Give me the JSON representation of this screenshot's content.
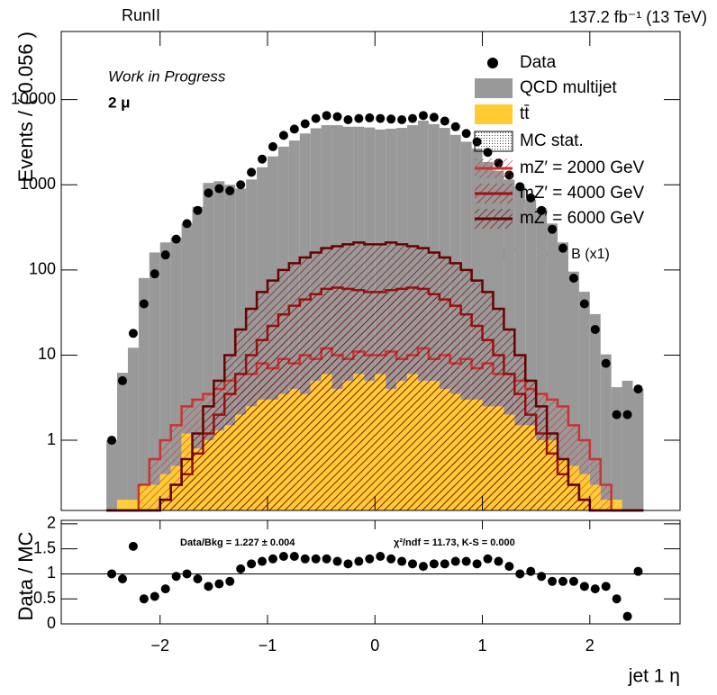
{
  "chart_data": [
    {
      "type": "histogram",
      "top_left": "RunII",
      "top_right": "137.2 fb⁻¹  (13 TeV)",
      "annotations": [
        "Work in Progress",
        "2  μ"
      ],
      "ylabel": "Events / ( 0.056 )",
      "log_y": true,
      "xlim": [
        -2.92,
        2.84
      ],
      "ylim": [
        0.15,
        63000
      ],
      "yticks": [
        1,
        10,
        100,
        1000,
        10000
      ],
      "bins": [
        -2.5,
        -2.4,
        -2.3,
        -2.2,
        -2.1,
        -2.0,
        -1.9,
        -1.8,
        -1.7,
        -1.6,
        -1.5,
        -1.4,
        -1.3,
        -1.2,
        -1.1,
        -1.0,
        -0.9,
        -0.8,
        -0.7,
        -0.6,
        -0.5,
        -0.4,
        -0.3,
        -0.2,
        -0.1,
        0,
        0.1,
        0.2,
        0.3,
        0.4,
        0.5,
        0.6,
        0.7,
        0.8,
        0.9,
        1.0,
        1.1,
        1.2,
        1.3,
        1.4,
        1.5,
        1.6,
        1.7,
        1.8,
        1.9,
        2.0,
        2.1,
        2.2,
        2.3,
        2.4,
        2.5
      ],
      "series": [
        {
          "name": "Data",
          "style": "points",
          "color": "#000000",
          "values": [
            1,
            5,
            18,
            40,
            90,
            150,
            230,
            350,
            500,
            800,
            900,
            850,
            1000,
            1400,
            2000,
            2800,
            3800,
            4500,
            5200,
            6000,
            6500,
            6300,
            5800,
            6000,
            6100,
            6000,
            5900,
            5800,
            6000,
            6500,
            6200,
            5600,
            4800,
            4000,
            3200,
            2400,
            1800,
            1300,
            950,
            700,
            500,
            300,
            180,
            80,
            40,
            20,
            8,
            2,
            2,
            4
          ]
        },
        {
          "name": "QCD multijet",
          "style": "stack",
          "color": "#999999",
          "values": [
            1,
            6,
            12,
            80,
            160,
            210,
            240,
            350,
            550,
            1050,
            1100,
            1000,
            900,
            1150,
            1600,
            2150,
            2800,
            3300,
            4000,
            4600,
            5000,
            5000,
            4800,
            4800,
            4700,
            4450,
            4550,
            4650,
            5000,
            5650,
            5150,
            4650,
            3850,
            3200,
            2650,
            1850,
            1450,
            1150,
            950,
            670,
            530,
            350,
            210,
            95,
            55,
            30,
            10,
            4,
            5,
            4
          ]
        },
        {
          "name": "tt̄",
          "style": "stack",
          "color": "#ffcc33",
          "values": [
            0,
            0.2,
            0.2,
            0.3,
            0.3,
            0.4,
            0.5,
            1.2,
            0.8,
            1.0,
            1.3,
            1.5,
            2,
            2.5,
            3,
            3,
            3.5,
            4,
            3.5,
            5,
            6,
            4,
            5,
            6,
            5,
            6,
            4,
            5,
            6,
            5,
            5,
            4,
            3.5,
            3,
            3,
            2.5,
            2.5,
            2,
            1.5,
            1.5,
            1,
            1,
            0.6,
            0.5,
            0.4,
            0.3,
            0.2,
            0.2,
            0,
            0
          ]
        },
        {
          "name": "MC stat.",
          "style": "band",
          "color": "#555555"
        },
        {
          "name": "mZ′ = 2000 GeV",
          "style": "signal",
          "color": "#cc3333",
          "values": [
            0,
            0,
            0,
            0.3,
            0.6,
            1,
            1.5,
            2.5,
            3,
            3.5,
            4,
            5,
            6,
            6,
            8,
            7,
            9,
            8,
            10,
            9,
            12,
            10,
            9,
            11,
            10,
            10,
            11,
            9,
            10,
            12,
            9,
            10,
            8,
            9,
            7,
            8,
            6,
            6,
            5,
            4,
            3.5,
            3,
            2.5,
            1.5,
            1,
            0.6,
            0.3,
            0,
            0,
            0
          ]
        },
        {
          "name": "mZ′ = 4000 GeV",
          "style": "signal",
          "color": "#a01010",
          "values": [
            0,
            0,
            0,
            0,
            0,
            0.2,
            0.3,
            0.4,
            0.7,
            1.2,
            2,
            3.5,
            6,
            10,
            15,
            22,
            30,
            38,
            45,
            52,
            60,
            62,
            60,
            58,
            55,
            55,
            58,
            60,
            62,
            60,
            52,
            45,
            38,
            30,
            22,
            15,
            10,
            6,
            3.5,
            2,
            1.2,
            0.7,
            0.4,
            0.3,
            0.2,
            0,
            0,
            0,
            0,
            0
          ]
        },
        {
          "name": "mZ′ = 6000 GeV",
          "style": "signal",
          "color": "#6b0000",
          "values": [
            0,
            0,
            0,
            0,
            0,
            0.2,
            0.3,
            0.6,
            1.2,
            2.5,
            5,
            10,
            20,
            35,
            55,
            75,
            100,
            120,
            140,
            160,
            180,
            190,
            200,
            210,
            200,
            200,
            210,
            200,
            190,
            180,
            160,
            140,
            120,
            100,
            75,
            55,
            35,
            20,
            10,
            5,
            2.5,
            1.2,
            0.6,
            0.3,
            0.2,
            0,
            0,
            0,
            0,
            0
          ]
        }
      ],
      "signal_model": "HVT model B (x1)"
    },
    {
      "type": "ratio",
      "ylabel": "Data / MC",
      "xlabel": "jet 1 η",
      "annotations": [
        "Data/Bkg = 1.227 ± 0.004",
        "χ²/ndf = 11.73,   K-S = 0.000"
      ],
      "xlim": [
        -2.92,
        2.84
      ],
      "ylim": [
        0,
        2.07
      ],
      "yticks": [
        0,
        0.5,
        1,
        1.5,
        2
      ],
      "xticks": [
        {
          "value": -2,
          "label": "−2"
        },
        {
          "value": -1,
          "label": "−1"
        },
        0,
        1,
        2
      ],
      "reference": 1,
      "color": "#000000",
      "values": [
        1,
        0.9,
        1.55,
        0.5,
        0.55,
        0.7,
        0.95,
        1,
        0.9,
        0.75,
        0.8,
        0.85,
        1.1,
        1.2,
        1.25,
        1.3,
        1.35,
        1.35,
        1.3,
        1.3,
        1.3,
        1.25,
        1.2,
        1.25,
        1.3,
        1.35,
        1.3,
        1.25,
        1.2,
        1.15,
        1.2,
        1.2,
        1.25,
        1.25,
        1.2,
        1.3,
        1.25,
        1.15,
        1,
        1.05,
        0.95,
        0.85,
        0.85,
        0.85,
        0.75,
        0.7,
        0.75,
        0.5,
        0.15,
        1.05
      ]
    }
  ]
}
